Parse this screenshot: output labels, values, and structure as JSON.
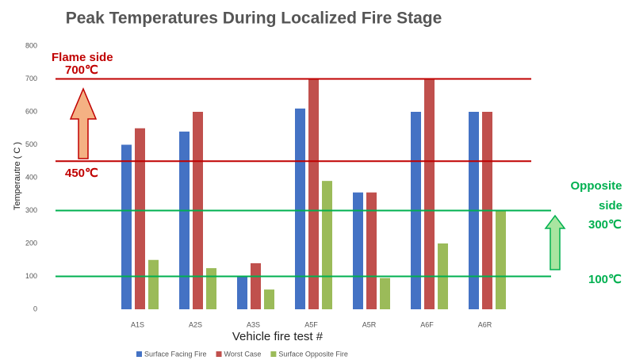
{
  "chart_data": {
    "type": "bar",
    "title": "Peak Temperatures During Localized Fire Stage",
    "x_label": "Vehicle fire test #",
    "y_label": "Temperautre ( C )",
    "categories": [
      null,
      "A1S",
      "A2S",
      "A3S",
      "A5F",
      "A5R",
      "A6F",
      "A6R"
    ],
    "series": [
      {
        "name": "Surface Facing Fire",
        "color": "#4472c4",
        "values": [
          null,
          500,
          540,
          100,
          610,
          355,
          600,
          600
        ]
      },
      {
        "name": "Worst Case",
        "color": "#c0504d",
        "values": [
          null,
          550,
          600,
          140,
          700,
          355,
          700,
          600
        ]
      },
      {
        "name": "Surface Opposite Fire",
        "color": "#9bbb59",
        "values": [
          null,
          150,
          125,
          60,
          390,
          95,
          200,
          300
        ]
      }
    ],
    "ylim": [
      0,
      800
    ],
    "yticks": [
      0,
      100,
      200,
      300,
      400,
      500,
      600,
      700,
      800
    ],
    "grid": false,
    "legend": "bottom",
    "reference_lines": [
      {
        "value": 700,
        "color": "#c00000"
      },
      {
        "value": 450,
        "color": "#c00000"
      },
      {
        "value": 300,
        "color": "#00b050"
      },
      {
        "value": 100,
        "color": "#00b050"
      }
    ],
    "annotations": [
      {
        "text": "Flame side",
        "color": "#c00000"
      },
      {
        "text": "700℃",
        "color": "#c00000"
      },
      {
        "text": "450℃",
        "color": "#c00000"
      },
      {
        "text": "Opposite",
        "color": "#00b050"
      },
      {
        "text": "side",
        "color": "#00b050"
      },
      {
        "text": "300℃",
        "color": "#00b050"
      },
      {
        "text": "100℃",
        "color": "#00b050"
      }
    ]
  }
}
